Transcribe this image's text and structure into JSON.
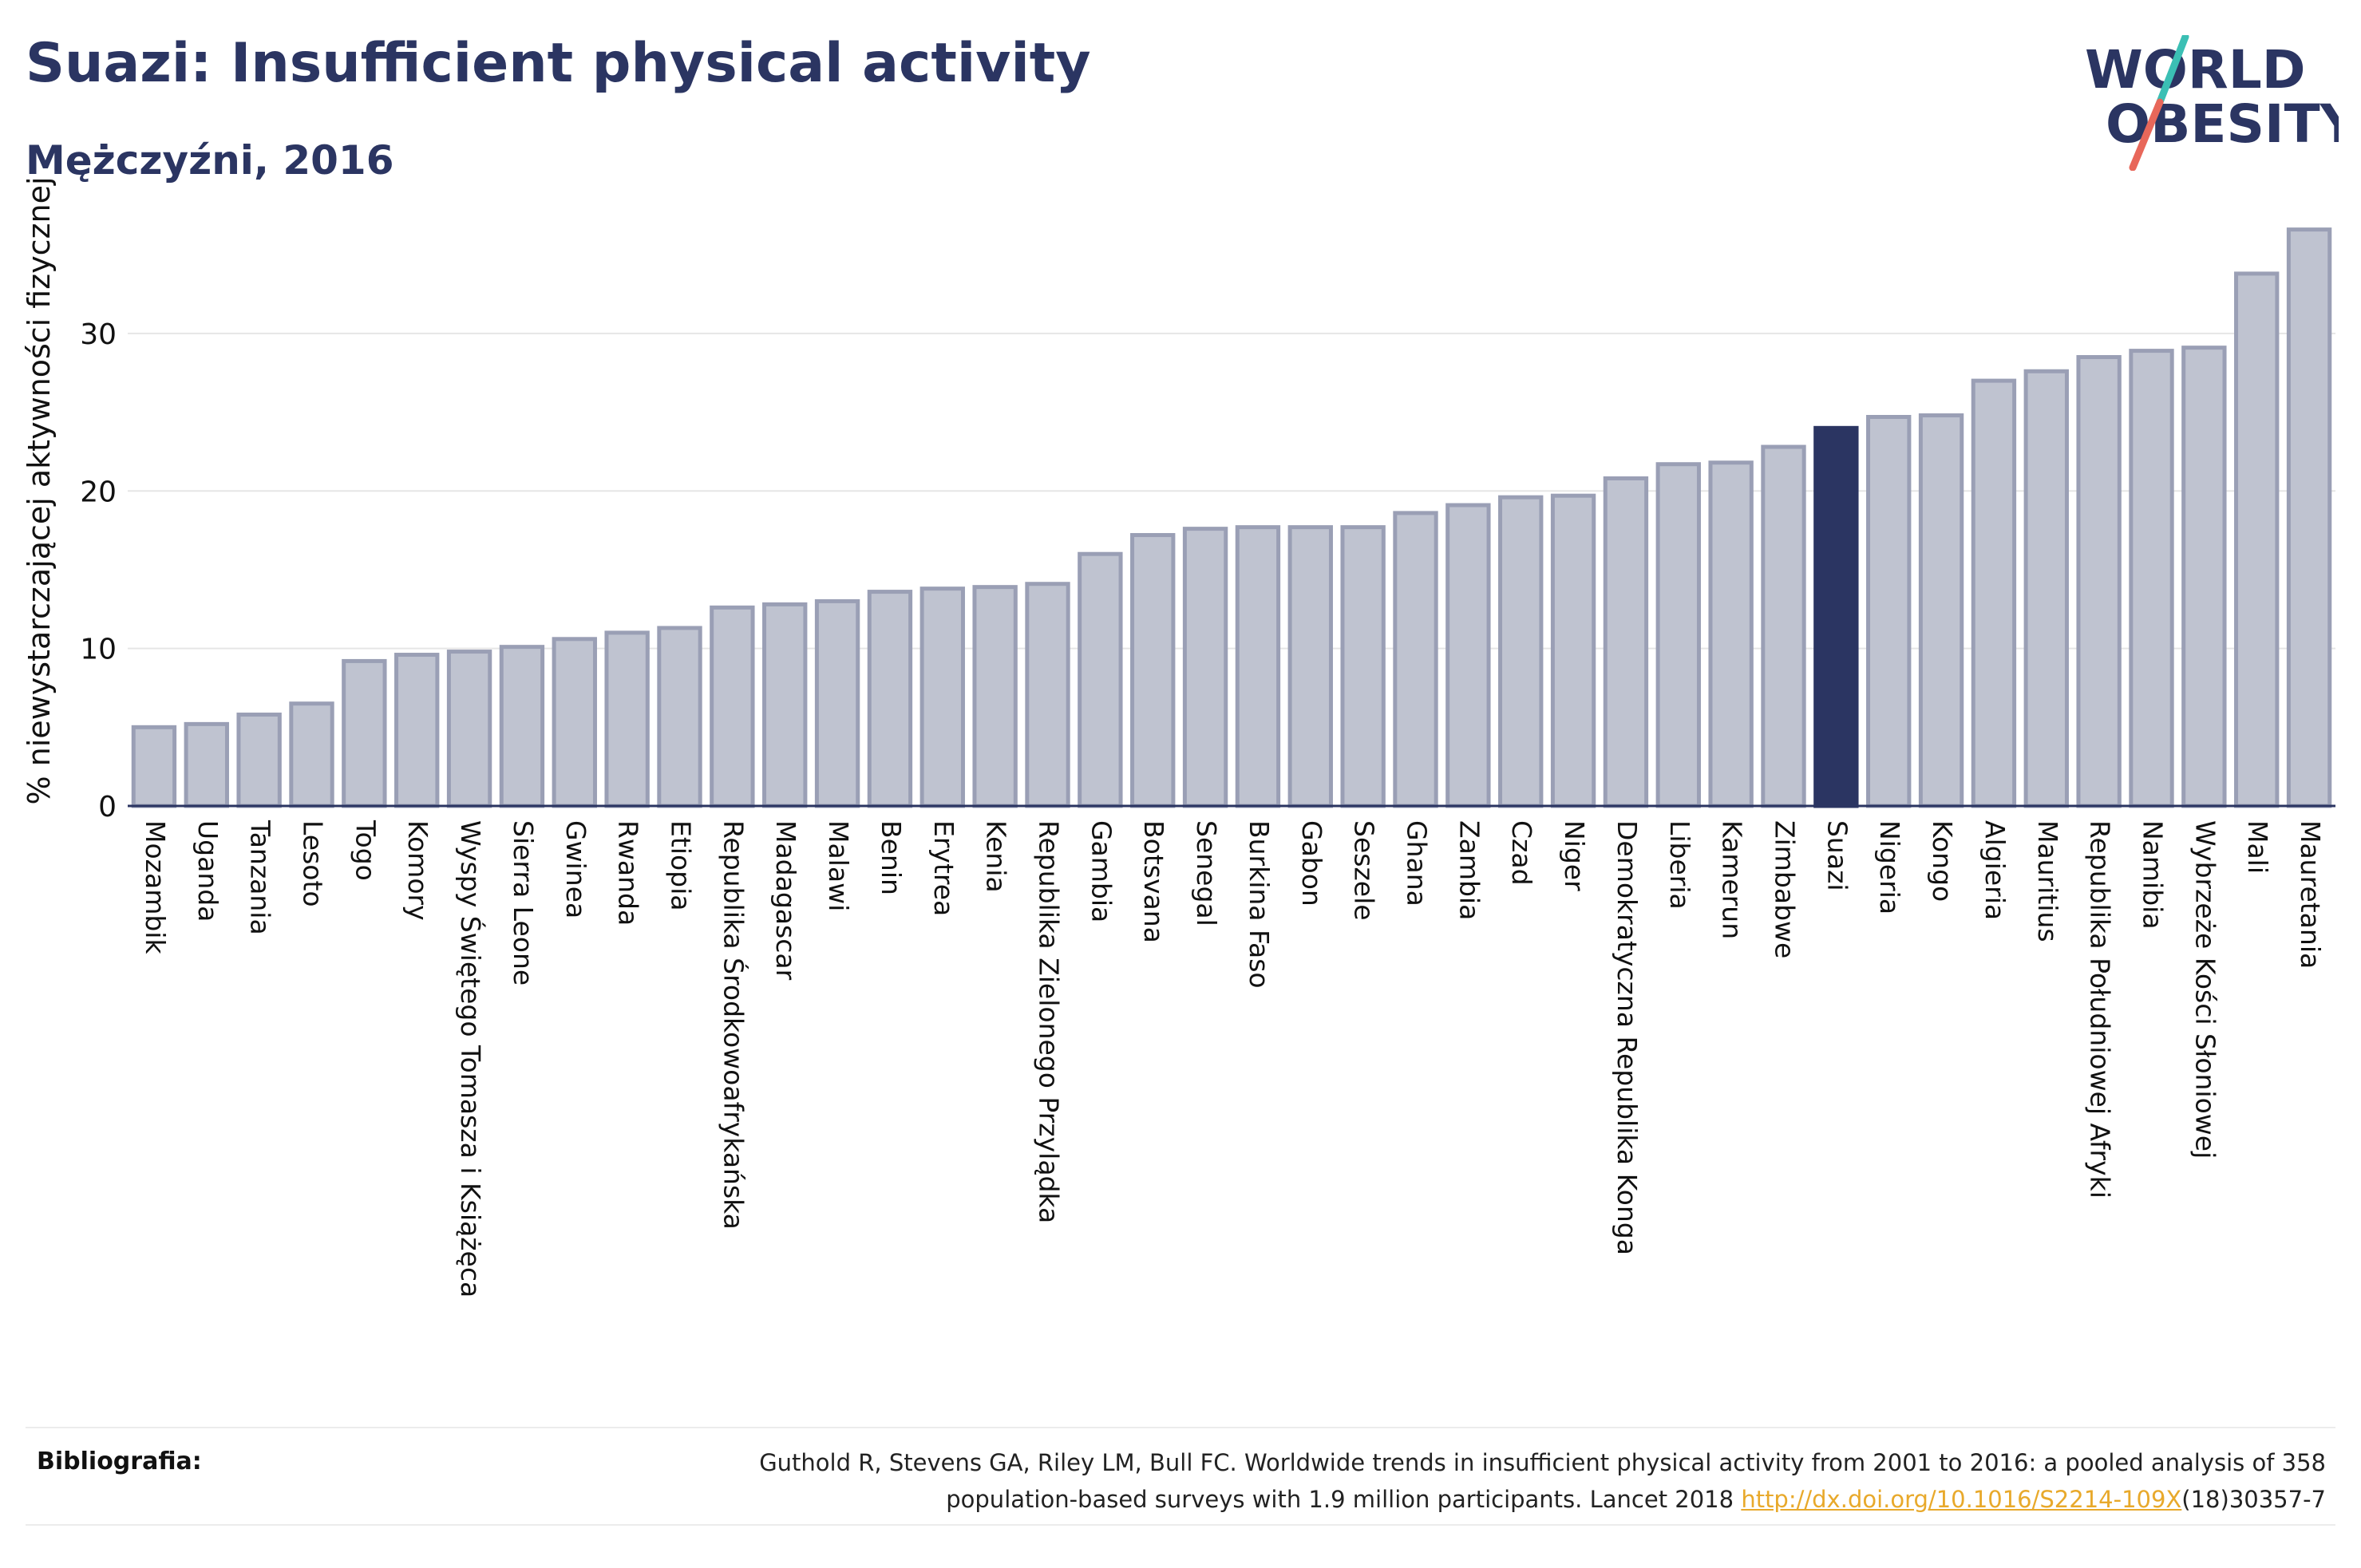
{
  "header": {
    "title": "Suazi: Insufficient physical activity",
    "subtitle": "Mężczyźni, 2016"
  },
  "logo": {
    "line1": "WORLD",
    "line2": "OBESITY",
    "accent_teal": "#3bbfb4",
    "accent_coral": "#e8675a",
    "text_color": "#2b3562"
  },
  "chart_data": {
    "type": "bar",
    "ylabel": "% niewystarczającej aktywności fizycznej",
    "xlabel": "",
    "ylim": [
      0,
      38
    ],
    "yticks": [
      0,
      10,
      20,
      30
    ],
    "grid": true,
    "highlight": "Suazi",
    "colors": {
      "bar": "#bfc3d0",
      "bar_border": "#9a9fb5",
      "highlight": "#2b3562",
      "grid": "#e6e6e6",
      "axis": "#2b3562"
    },
    "categories": [
      "Mozambik",
      "Uganda",
      "Tanzania",
      "Lesoto",
      "Togo",
      "Komory",
      "Wyspy Świętego Tomasza i Książęca",
      "Sierra Leone",
      "Gwinea",
      "Rwanda",
      "Etiopia",
      "Republika Środkowoafrykańska",
      "Madagascar",
      "Malawi",
      "Benin",
      "Erytrea",
      "Kenia",
      "Republika Zielonego Przylądka",
      "Gambia",
      "Botsvana",
      "Senegal",
      "Burkina Faso",
      "Gabon",
      "Seszele",
      "Ghana",
      "Zambia",
      "Czad",
      "Niger",
      "Demokratyczna Republika Konga",
      "Liberia",
      "Kamerun",
      "Zimbabwe",
      "Suazi",
      "Nigeria",
      "Kongo",
      "Algieria",
      "Mauritius",
      "Republika Południowej Afryki",
      "Namibia",
      "Wybrzeże Kości Słoniowej",
      "Mali",
      "Mauretania"
    ],
    "values": [
      5.0,
      5.2,
      5.8,
      6.5,
      9.2,
      9.6,
      9.8,
      10.1,
      10.6,
      11.0,
      11.3,
      12.6,
      12.8,
      13.0,
      13.6,
      13.8,
      13.9,
      14.1,
      16.0,
      17.2,
      17.6,
      17.7,
      17.7,
      17.7,
      18.6,
      19.1,
      19.6,
      19.7,
      20.8,
      21.7,
      21.8,
      22.8,
      24.0,
      24.7,
      24.8,
      27.0,
      27.6,
      28.5,
      28.9,
      29.1,
      33.8,
      36.6
    ]
  },
  "footer": {
    "label": "Bibliografia:",
    "line1": "Guthold R, Stevens GA, Riley LM, Bull FC. Worldwide trends in insufficient physical activity from 2001 to 2016: a pooled analysis of 358",
    "line2_pre": "population-based surveys with 1.9 million participants. Lancet 2018 ",
    "link": "http://dx.doi.org/10.1016/S2214-109X",
    "line2_post": "(18)30357-7"
  }
}
